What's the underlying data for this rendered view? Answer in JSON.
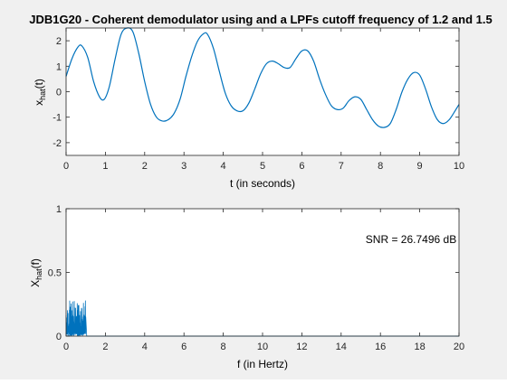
{
  "chart_data": [
    {
      "type": "line",
      "title": "JDB1G20 - Coherent demodulator using and a LPFs cutoff frequency of 1.2 and 1.5",
      "xlabel": "t (in seconds)",
      "ylabel_base": "x",
      "ylabel_sub": "hat",
      "ylabel_tail": "(t)",
      "xlim": [
        0,
        10
      ],
      "ylim": [
        -2.5,
        2.5
      ],
      "xticks": [
        0,
        1,
        2,
        3,
        4,
        5,
        6,
        7,
        8,
        9,
        10
      ],
      "yticks": [
        -2,
        -1,
        0,
        1,
        2
      ],
      "grid": false,
      "color": "#0072bd",
      "series": [
        {
          "x": [
            0,
            0.15,
            0.3,
            0.4,
            0.55,
            0.7,
            0.85,
            0.97,
            1.1,
            1.25,
            1.4,
            1.55,
            1.7,
            1.85,
            2.0,
            2.15,
            2.3,
            2.45,
            2.6,
            2.75,
            2.9,
            3.05,
            3.2,
            3.35,
            3.5,
            3.6,
            3.75,
            3.9,
            4.05,
            4.2,
            4.35,
            4.5,
            4.65,
            4.8,
            4.95,
            5.1,
            5.25,
            5.4,
            5.55,
            5.7,
            5.85,
            6.0,
            6.15,
            6.3,
            6.45,
            6.6,
            6.75,
            6.9,
            7.05,
            7.2,
            7.35,
            7.5,
            7.65,
            7.8,
            7.95,
            8.1,
            8.25,
            8.4,
            8.55,
            8.7,
            8.85,
            9.0,
            9.15,
            9.3,
            9.45,
            9.6,
            9.75,
            9.9,
            10.0
          ],
          "y": [
            0.6,
            1.3,
            1.75,
            1.8,
            1.35,
            0.4,
            -0.2,
            -0.3,
            0.2,
            1.3,
            2.25,
            2.5,
            2.35,
            1.5,
            0.4,
            -0.5,
            -1.0,
            -1.15,
            -1.1,
            -0.85,
            -0.3,
            0.6,
            1.4,
            2.0,
            2.28,
            2.25,
            1.7,
            0.8,
            -0.05,
            -0.55,
            -0.75,
            -0.75,
            -0.45,
            0.1,
            0.7,
            1.1,
            1.2,
            1.1,
            0.95,
            0.95,
            1.3,
            1.6,
            1.6,
            1.2,
            0.5,
            -0.1,
            -0.55,
            -0.7,
            -0.65,
            -0.35,
            -0.2,
            -0.3,
            -0.7,
            -1.1,
            -1.35,
            -1.4,
            -1.25,
            -0.7,
            0.0,
            0.5,
            0.75,
            0.65,
            0.1,
            -0.6,
            -1.1,
            -1.25,
            -1.1,
            -0.75,
            -0.5
          ]
        }
      ]
    },
    {
      "type": "line",
      "xlabel": "f (in Hertz)",
      "ylabel_base": "X",
      "ylabel_sub": "hat",
      "ylabel_tail": "(f)",
      "xlim": [
        0,
        20
      ],
      "ylim": [
        0,
        1
      ],
      "xticks": [
        0,
        2,
        4,
        6,
        8,
        10,
        12,
        14,
        16,
        18,
        20
      ],
      "yticks": [
        0,
        0.5,
        1
      ],
      "ytick_labels": [
        "0",
        "0.5",
        "1"
      ],
      "annotation": "SNR = 26.7496 dB",
      "grid": false,
      "color": "#0072bd",
      "noise_band": {
        "max_frequency": 1.0,
        "amplitude_max": 0.28,
        "amplitude_min": 0.05
      },
      "floor_level": 0.0
    }
  ]
}
